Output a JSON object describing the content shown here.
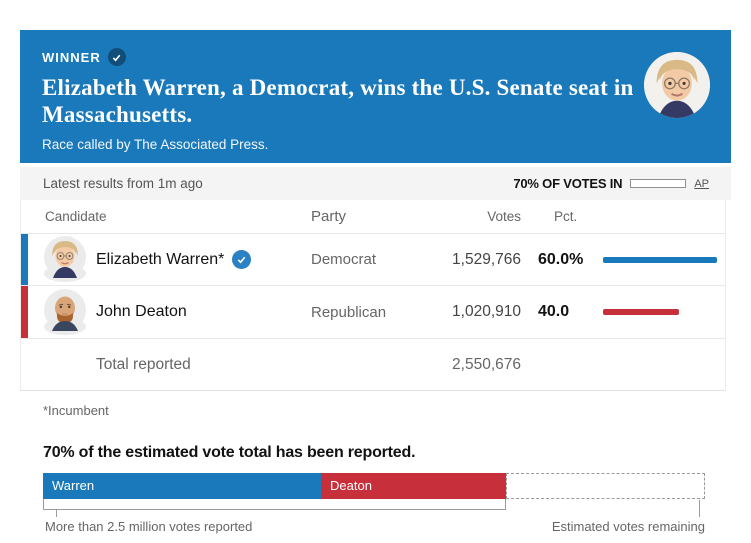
{
  "hero": {
    "winner_label": "WINNER",
    "title": "Elizabeth Warren, a Democrat, wins the U.S. Senate seat in Massachusetts.",
    "subtitle": "Race called by The Associated Press."
  },
  "meta": {
    "latest": "Latest results from 1m ago",
    "votes_in_label": "70% OF VOTES IN",
    "votes_in_pct": 70,
    "source": "AP"
  },
  "table": {
    "headers": {
      "candidate": "Candidate",
      "party": "Party",
      "votes": "Votes",
      "pct": "Pct."
    },
    "rows": [
      {
        "name": "Elizabeth Warren*",
        "winner": true,
        "party": "Democrat",
        "votes": "1,529,766",
        "pct_label": "60.0%",
        "pct": 60,
        "color": "#1a79ba"
      },
      {
        "name": "John Deaton",
        "winner": false,
        "party": "Republican",
        "votes": "1,020,910",
        "pct_label": "40.0",
        "pct": 40,
        "color": "#c7303b"
      }
    ],
    "total_label": "Total reported",
    "total_votes": "2,550,676"
  },
  "footnote": "*Incumbent",
  "report_chart": {
    "headline": "70% of the estimated vote total has been reported.",
    "reported_pct": 70,
    "segments": [
      {
        "label": "Warren",
        "pct_of_reported": 60,
        "color": "#1a79ba"
      },
      {
        "label": "Deaton",
        "pct_of_reported": 40,
        "color": "#c7303b"
      }
    ],
    "left_note": "More than 2.5 million votes reported",
    "right_note": "Estimated votes remaining"
  },
  "chart_data": {
    "type": "bar",
    "title": "70% of the estimated vote total has been reported.",
    "categories": [
      "Elizabeth Warren*",
      "John Deaton"
    ],
    "series": [
      {
        "name": "Elizabeth Warren*",
        "party": "Democrat",
        "votes": 1529766,
        "pct": 60.0,
        "color": "#1a79ba"
      },
      {
        "name": "John Deaton",
        "party": "Republican",
        "votes": 1020910,
        "pct": 40.0,
        "color": "#c7303b"
      }
    ],
    "total_reported": 2550676,
    "estimated_reported_pct": 70,
    "stacked_bar_segments": [
      {
        "label": "Warren",
        "share_of_total_pct": 42,
        "color": "#1a79ba"
      },
      {
        "label": "Deaton",
        "share_of_total_pct": 28,
        "color": "#c7303b"
      },
      {
        "label": "Estimated votes remaining",
        "share_of_total_pct": 30,
        "color": "dashed-outline"
      }
    ]
  },
  "colors": {
    "dem_blue": "#1a79ba",
    "rep_red": "#c7303b",
    "hero_bg": "#1a79ba",
    "winner_badge": "#114e7a",
    "check_badge": "#2a81c4"
  }
}
